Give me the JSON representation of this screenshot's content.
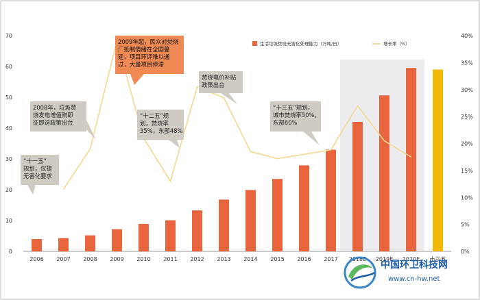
{
  "chart_data": {
    "type": "bar",
    "categories": [
      "2006",
      "2007",
      "2008",
      "2009",
      "2010",
      "2011",
      "2012",
      "2013",
      "2014",
      "2015",
      "2016",
      "2017",
      "2018E",
      "2019E",
      "2020E",
      "十三五"
    ],
    "series": [
      {
        "name": "生活垃圾焚烧无害化处理能力（万吨/日）",
        "kind": "bar",
        "axis": "left",
        "values": [
          4.0,
          4.3,
          5.2,
          7.2,
          8.9,
          10.1,
          13.3,
          16.8,
          19.9,
          23.5,
          27.9,
          33.0,
          42.0,
          50.6,
          59.5,
          59.0
        ]
      },
      {
        "name": "增长率（%）",
        "kind": "line",
        "axis": "right",
        "values": [
          null,
          11.5,
          19.0,
          39.0,
          21.0,
          13.0,
          30.5,
          28.5,
          18.5,
          17.2,
          18.0,
          18.8,
          27.0,
          20.5,
          17.5,
          null
        ]
      }
    ],
    "yleft": {
      "min": 0,
      "max": 70,
      "step": 10
    },
    "yright": {
      "min": 0,
      "max": 40,
      "step": 5,
      "unit": "%"
    },
    "highlight": {
      "from": "2018E",
      "to": "2020E",
      "color": "#ececee"
    },
    "colors": {
      "bar": "#e8643c",
      "bar_final": "#f5b800",
      "line": "#f2d890",
      "callout": "#cfcbc3",
      "callout_orange": "#f08a55"
    },
    "annotations": [
      {
        "id": "a1",
        "lines": [
          "“十一五”",
          "规划，仅提",
          "无害化要求"
        ]
      },
      {
        "id": "a2",
        "lines": [
          "2008年，垃圾焚",
          "烧发电增值税即",
          "征即退政策出台"
        ]
      },
      {
        "id": "a3",
        "lines": [
          "2009年起，民众对焚烧",
          "厂抵制情绪在全国蔓",
          "延，项目环评难以通",
          "过，大量项目停滞"
        ]
      },
      {
        "id": "a4",
        "lines": [
          "“十二五”规",
          "划，焚烧率",
          "35%，东部48%"
        ]
      },
      {
        "id": "a5",
        "lines": [
          "焚烧电价补贴",
          "政策出台"
        ]
      },
      {
        "id": "a6",
        "lines": [
          "“十三五”规划，",
          "城市焚烧率50%，",
          "东部60%"
        ]
      }
    ]
  },
  "watermark": {
    "site_name": "中国环卫科技网",
    "url": "www.cn-hw.net"
  }
}
